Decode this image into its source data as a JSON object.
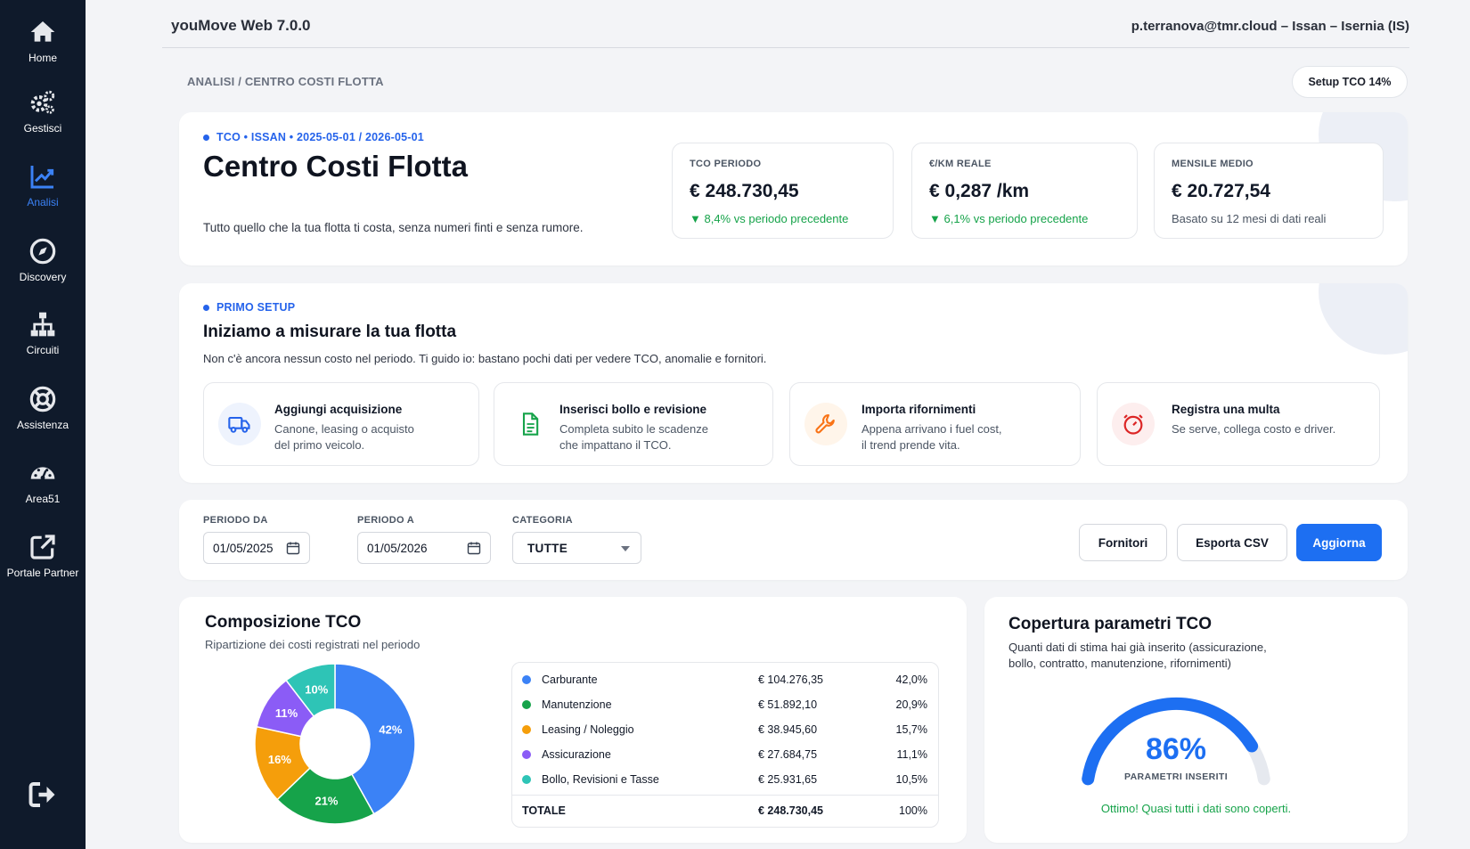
{
  "app": {
    "title": "youMove Web 7.0.0",
    "user": "p.terranova@tmr.cloud – Issan – Isernia (IS)"
  },
  "nav": {
    "home": "Home",
    "gestisci": "Gestisci",
    "analisi": "Analisi",
    "discovery": "Discovery",
    "circuiti": "Circuiti",
    "assistenza": "Assistenza",
    "area51": "Area51",
    "portale": "Portale Partner"
  },
  "breadcrumb": "ANALISI / CENTRO COSTI FLOTTA",
  "setup_badge": "Setup TCO 14%",
  "hero": {
    "eyebrow": "TCO • ISSAN • 2025-05-01 / 2026-05-01",
    "title": "Centro Costi Flotta",
    "description": "Tutto quello che la tua flotta ti costa, senza numeri finti e senza rumore.",
    "kpis": [
      {
        "label": "TCO PERIODO",
        "value": "€ 248.730,45",
        "sub": "▼ 8,4% vs periodo precedente"
      },
      {
        "label": "€/KM REALE",
        "value": "€ 0,287 /km",
        "sub": "▼ 6,1% vs periodo precedente"
      },
      {
        "label": "MENSILE MEDIO",
        "value": "€ 20.727,54",
        "sub": "Basato su 12 mesi di dati reali"
      }
    ]
  },
  "setup": {
    "eyebrow": "PRIMO SETUP",
    "title": "Iniziamo a misurare la tua flotta",
    "description": "Non c'è ancora nessun costo nel periodo. Ti guido io: bastano pochi dati per vedere TCO, anomalie e fornitori.",
    "steps": [
      {
        "title": "Aggiungi acquisizione",
        "line1": "Canone, leasing o acquisto",
        "line2": "del primo veicolo."
      },
      {
        "title": "Inserisci bollo e revisione",
        "line1": "Completa subito le scadenze",
        "line2": "che impattano il TCO."
      },
      {
        "title": "Importa rifornimenti",
        "line1": "Appena arrivano i fuel cost,",
        "line2": "il trend prende vita."
      },
      {
        "title": "Registra una multa",
        "line1": "Se serve, collega costo e driver.",
        "line2": ""
      }
    ]
  },
  "filters": {
    "from_label": "PERIODO DA",
    "from_value": "01/05/2025",
    "to_label": "PERIODO A",
    "to_value": "01/05/2026",
    "cat_label": "CATEGORIA",
    "cat_value": "TUTTE",
    "btn_fornitori": "Fornitori",
    "btn_csv": "Esporta CSV",
    "btn_aggiorna": "Aggiorna"
  },
  "composition": {
    "title": "Composizione TCO",
    "subtitle": "Ripartizione dei costi registrati nel periodo",
    "total_label": "TOTALE",
    "total_value": "€ 248.730,45",
    "total_pct": "100%"
  },
  "chart_data": {
    "type": "pie",
    "categories": [
      "Carburante",
      "Manutenzione",
      "Leasing / Noleggio",
      "Assicurazione",
      "Bollo, Revisioni e Tasse"
    ],
    "values": [
      104276.35,
      51892.1,
      38945.6,
      27684.75,
      25931.65
    ],
    "value_labels": [
      "€ 104.276,35",
      "€ 51.892,10",
      "€ 38.945,60",
      "€ 27.684,75",
      "€ 25.931,65"
    ],
    "percent_labels": [
      "42,0%",
      "20,9%",
      "15,7%",
      "11,1%",
      "10,5%"
    ],
    "slice_labels": [
      "42%",
      "21%",
      "16%",
      "11%",
      "10%"
    ],
    "colors": [
      "#3b82f6",
      "#16a34a",
      "#f59e0b",
      "#8b5cf6",
      "#2ec4b6"
    ],
    "title": "Composizione TCO"
  },
  "coverage": {
    "title": "Copertura parametri TCO",
    "subtitle": "Quanti dati di stima hai già inserito (assicurazione, bollo, contratto, manutenzione, rifornimenti)",
    "value": 86,
    "value_label": "86%",
    "caption": "PARAMETRI INSERITI",
    "message": "Ottimo! Quasi tutti i dati sono coperti.",
    "color": "#1d6ff2"
  }
}
